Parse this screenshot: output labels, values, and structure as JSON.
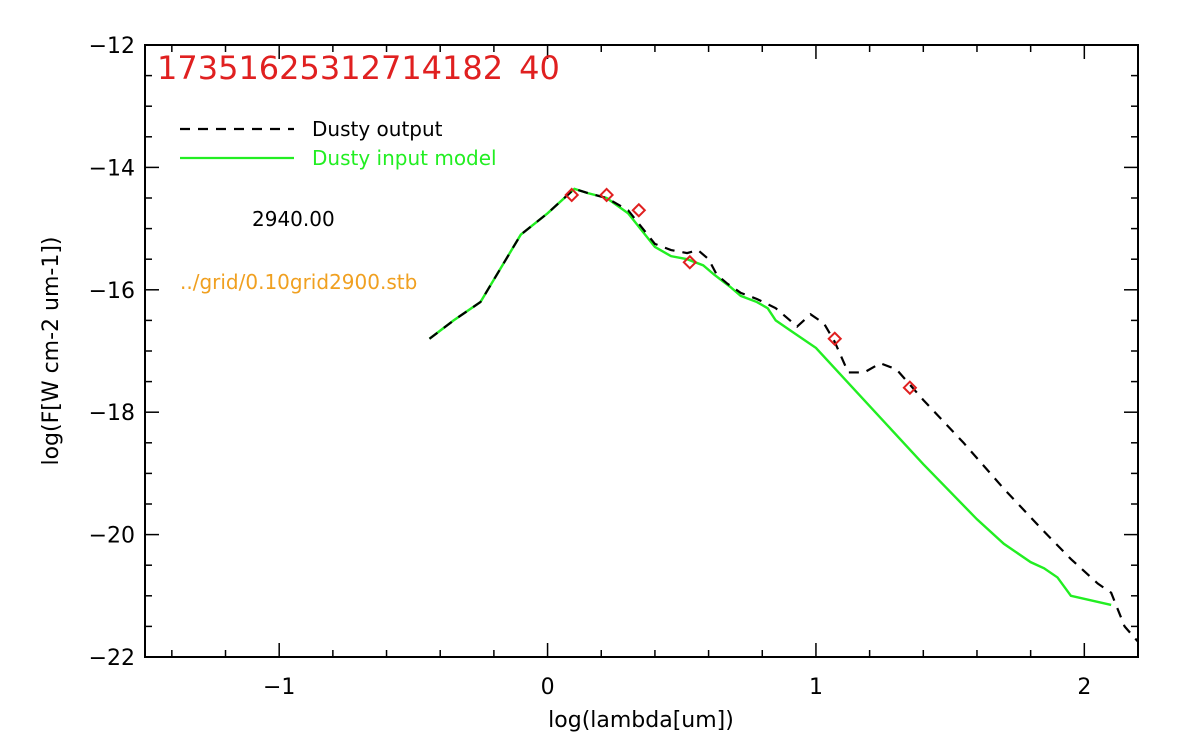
{
  "chart_data": {
    "type": "line",
    "title": "",
    "xlabel": "log(lambda[um])",
    "ylabel": "log(F[W cm-2 um-1])",
    "xlim": [
      -1.5,
      2.2
    ],
    "ylim": [
      -22,
      -12
    ],
    "x_ticks": [
      -1,
      0,
      1,
      2
    ],
    "x_tick_labels": [
      "−1",
      "0",
      "1",
      "2"
    ],
    "y_ticks": [
      -22,
      -20,
      -18,
      -16,
      -14,
      -12
    ],
    "y_tick_labels": [
      "−22",
      "−20",
      "−18",
      "−16",
      "−14",
      "−12"
    ],
    "grid": false,
    "legend_position": "top-left",
    "id_label": "17351625312714182 40",
    "colors": {
      "output": "#000000",
      "input": "#22ee22",
      "points": "#e02020",
      "id": "#e02020",
      "path": "#f0a020",
      "temp": "#000000"
    },
    "annotations": {
      "temperature": "2940.00",
      "grid_file": "../grid/0.10grid2900.stb"
    },
    "series": [
      {
        "name": "Dusty output",
        "style": "dashed",
        "x": [
          -0.44,
          -0.35,
          -0.25,
          -0.1,
          0.0,
          0.1,
          0.15,
          0.22,
          0.3,
          0.4,
          0.46,
          0.52,
          0.56,
          0.6,
          0.63,
          0.67,
          0.72,
          0.78,
          0.85,
          0.93,
          0.98,
          1.03,
          1.07,
          1.12,
          1.18,
          1.24,
          1.3,
          1.4,
          1.55,
          1.7,
          1.85,
          1.95,
          2.05,
          2.1,
          2.15,
          2.2
        ],
        "y": [
          -16.8,
          -16.5,
          -16.2,
          -15.1,
          -14.75,
          -14.35,
          -14.42,
          -14.5,
          -14.7,
          -15.25,
          -15.35,
          -15.4,
          -15.35,
          -15.5,
          -15.75,
          -15.9,
          -16.05,
          -16.15,
          -16.3,
          -16.6,
          -16.4,
          -16.55,
          -16.85,
          -17.35,
          -17.35,
          -17.2,
          -17.3,
          -17.8,
          -18.5,
          -19.25,
          -19.95,
          -20.4,
          -20.8,
          -20.95,
          -21.5,
          -21.75
        ]
      },
      {
        "name": "Dusty input model",
        "style": "solid",
        "x": [
          -0.44,
          -0.35,
          -0.25,
          -0.1,
          0.0,
          0.1,
          0.15,
          0.22,
          0.3,
          0.4,
          0.46,
          0.52,
          0.58,
          0.62,
          0.65,
          0.68,
          0.72,
          0.78,
          0.82,
          0.85,
          0.9,
          1.0,
          1.2,
          1.4,
          1.6,
          1.7,
          1.8,
          1.85,
          1.9,
          1.95,
          2.1
        ],
        "y": [
          -16.8,
          -16.5,
          -16.2,
          -15.1,
          -14.75,
          -14.35,
          -14.42,
          -14.5,
          -14.75,
          -15.3,
          -15.45,
          -15.5,
          -15.6,
          -15.75,
          -15.85,
          -15.95,
          -16.1,
          -16.2,
          -16.3,
          -16.5,
          -16.65,
          -16.95,
          -17.9,
          -18.85,
          -19.75,
          -20.15,
          -20.45,
          -20.55,
          -20.7,
          -21.0,
          -21.15
        ]
      },
      {
        "name": "",
        "style": "markers",
        "x": [
          0.09,
          0.22,
          0.34,
          0.53,
          1.07,
          1.35
        ],
        "y": [
          -14.45,
          -14.45,
          -14.7,
          -15.55,
          -16.8,
          -17.6
        ]
      }
    ]
  }
}
